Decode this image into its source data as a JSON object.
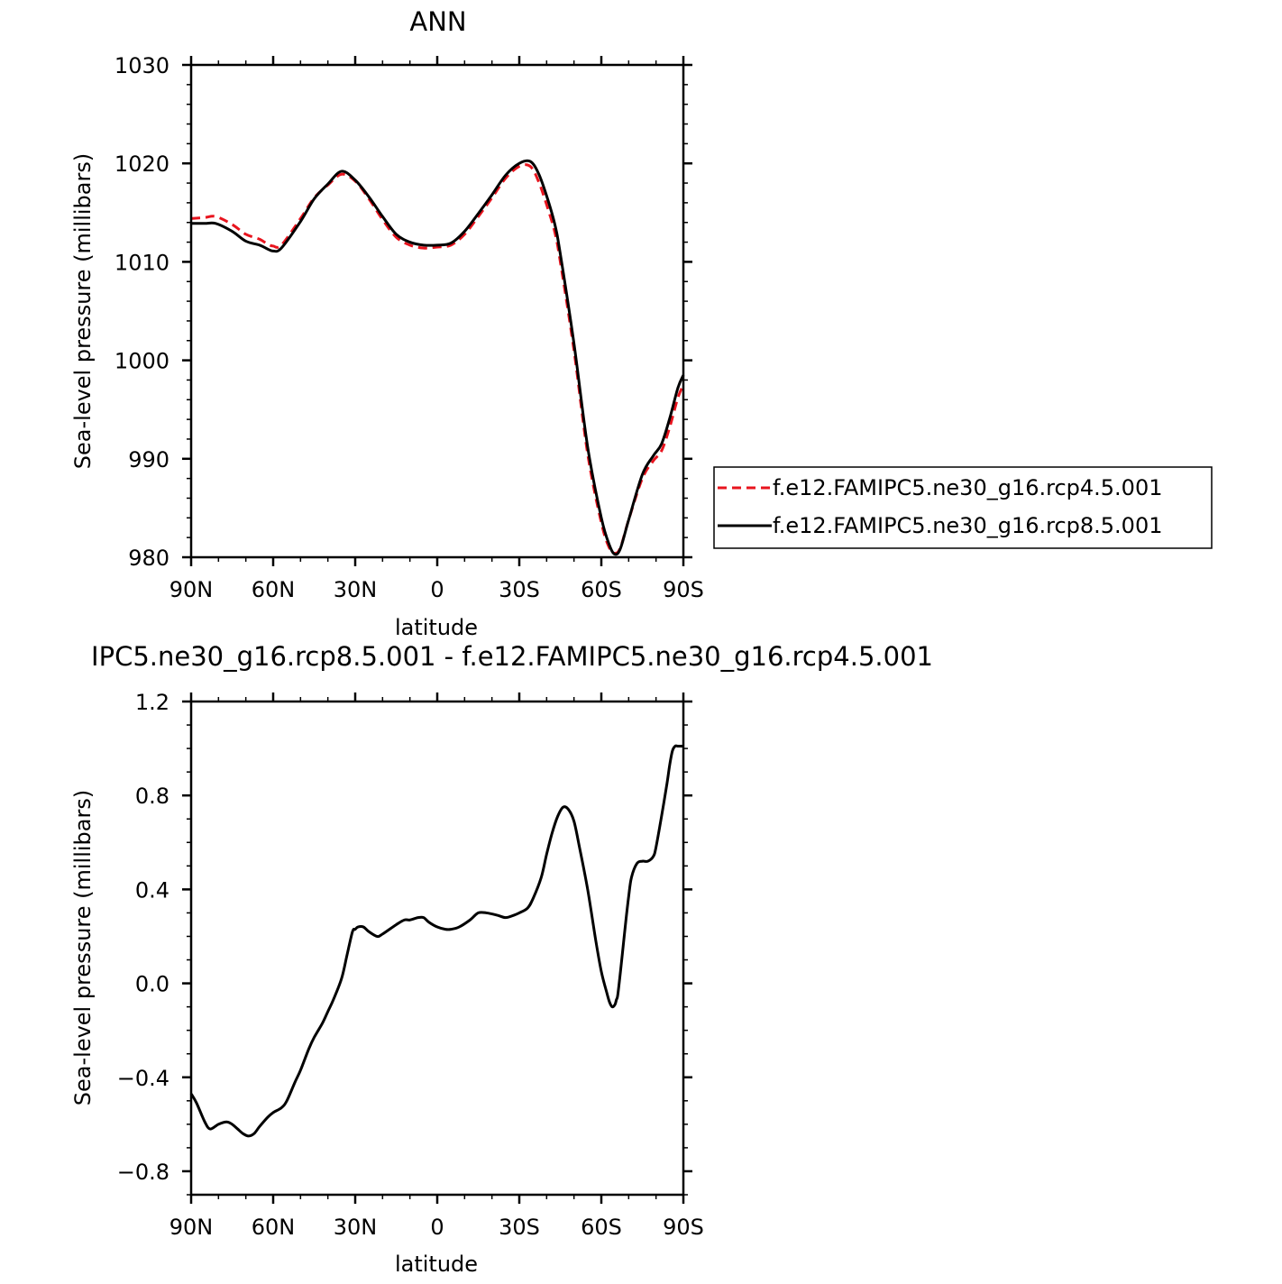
{
  "chart_data": [
    {
      "type": "line",
      "title": "ANN",
      "xlabel": "latitude",
      "ylabel": "Sea-level pressure (millibars)",
      "xlim": [
        90,
        -90
      ],
      "ylim": [
        980,
        1030
      ],
      "x_tick_labels": [
        "90N",
        "60N",
        "30N",
        "0",
        "30S",
        "60S",
        "90S"
      ],
      "x_ticks": [
        90,
        60,
        30,
        0,
        -30,
        -60,
        -90
      ],
      "y_ticks": [
        980,
        990,
        1000,
        1010,
        1020,
        1030
      ],
      "y_tick_labels": [
        "980",
        "990",
        "1000",
        "1010",
        "1020",
        "1030"
      ],
      "legend": {
        "placement": "right"
      },
      "series": [
        {
          "name": "f.e12.FAMIPC5.ne30_g16.rcp4.5.001",
          "color": "#e8141e",
          "style": "dashed",
          "x": [
            90,
            85,
            81,
            75,
            70,
            65,
            62,
            60,
            57,
            50,
            45,
            40,
            35,
            30,
            25,
            20,
            15,
            10,
            5,
            0,
            -5,
            -10,
            -15,
            -20,
            -25,
            -30,
            -34,
            -37,
            -40,
            -43,
            -45,
            -50,
            -55,
            -60,
            -63,
            -65,
            -67,
            -70,
            -75,
            -79,
            -82,
            -85,
            -88,
            -90
          ],
          "values": [
            1014.4,
            1014.5,
            1014.6,
            1013.8,
            1012.8,
            1012.3,
            1011.8,
            1011.6,
            1011.7,
            1014.4,
            1016.5,
            1017.8,
            1018.9,
            1018.2,
            1016.4,
            1014.3,
            1012.5,
            1011.7,
            1011.4,
            1011.5,
            1011.7,
            1012.8,
            1014.6,
            1016.5,
            1018.5,
            1019.7,
            1019.7,
            1018.2,
            1015.8,
            1013.0,
            1010.0,
            1001.0,
            990.5,
            983.5,
            980.9,
            980.4,
            981.0,
            983.8,
            988.0,
            989.8,
            990.8,
            993.2,
            996.2,
            997.5
          ]
        },
        {
          "name": "f.e12.FAMIPC5.ne30_g16.rcp8.5.001",
          "color": "#000000",
          "style": "solid",
          "x": [
            90,
            85,
            81,
            75,
            70,
            65,
            62,
            60,
            57,
            50,
            45,
            40,
            35,
            30,
            25,
            20,
            15,
            10,
            5,
            0,
            -5,
            -10,
            -15,
            -20,
            -25,
            -30,
            -34,
            -37,
            -40,
            -43,
            -45,
            -50,
            -55,
            -60,
            -63,
            -65,
            -67,
            -70,
            -75,
            -79,
            -82,
            -85,
            -88,
            -90
          ],
          "values": [
            1013.9,
            1013.9,
            1013.9,
            1013.1,
            1012.1,
            1011.7,
            1011.3,
            1011.1,
            1011.4,
            1014.1,
            1016.4,
            1017.9,
            1019.2,
            1018.3,
            1016.6,
            1014.6,
            1012.8,
            1012.0,
            1011.7,
            1011.7,
            1011.9,
            1013.1,
            1014.9,
            1016.8,
            1018.8,
            1020.0,
            1020.2,
            1019.0,
            1016.7,
            1013.8,
            1010.8,
            1001.7,
            991.2,
            984.0,
            981.2,
            980.3,
            980.9,
            983.8,
            988.4,
            990.3,
            991.5,
            994.1,
            997.2,
            998.5
          ]
        }
      ]
    },
    {
      "type": "line",
      "title": "IPC5.ne30_g16.rcp8.5.001 - f.e12.FAMIPC5.ne30_g16.rcp4.5.001",
      "xlabel": "latitude",
      "ylabel": "Sea-level pressure (millibars)",
      "xlim": [
        90,
        -90
      ],
      "ylim": [
        -0.9,
        1.2
      ],
      "x_tick_labels": [
        "90N",
        "60N",
        "30N",
        "0",
        "30S",
        "60S",
        "90S"
      ],
      "x_ticks": [
        90,
        60,
        30,
        0,
        -30,
        -60,
        -90
      ],
      "y_ticks": [
        -0.8,
        -0.4,
        0.0,
        0.4,
        0.8,
        1.2
      ],
      "y_tick_labels": [
        "−0.8",
        "−0.4",
        "0.0",
        "0.4",
        "0.8",
        "1.2"
      ],
      "series": [
        {
          "color": "#000000",
          "style": "solid",
          "x": [
            90,
            88,
            85,
            83,
            80,
            77,
            75,
            73,
            71,
            69,
            67,
            65,
            62,
            60,
            57,
            55,
            52,
            50,
            47,
            45,
            42,
            40,
            38,
            35,
            33,
            31,
            30,
            29,
            27,
            25,
            22,
            20,
            15,
            12,
            10,
            7,
            5,
            3,
            0,
            -3,
            -5,
            -8,
            -12,
            -15,
            -18,
            -22,
            -25,
            -28,
            -30,
            -33,
            -35,
            -38,
            -40,
            -42,
            -44,
            -46,
            -48,
            -50,
            -52,
            -55,
            -58,
            -60,
            -62,
            -63,
            -64,
            -65,
            -65.5,
            -66,
            -67,
            -68,
            -69,
            -70,
            -71,
            -73,
            -75,
            -77,
            -79,
            -80,
            -82,
            -84,
            -85,
            -86,
            -87,
            -88,
            -89,
            -90
          ],
          "values": [
            -0.47,
            -0.51,
            -0.59,
            -0.62,
            -0.6,
            -0.59,
            -0.6,
            -0.62,
            -0.64,
            -0.65,
            -0.64,
            -0.61,
            -0.57,
            -0.55,
            -0.53,
            -0.5,
            -0.42,
            -0.37,
            -0.28,
            -0.23,
            -0.17,
            -0.12,
            -0.07,
            0.02,
            0.12,
            0.22,
            0.23,
            0.24,
            0.24,
            0.22,
            0.2,
            0.21,
            0.25,
            0.27,
            0.27,
            0.28,
            0.28,
            0.26,
            0.24,
            0.23,
            0.23,
            0.24,
            0.27,
            0.3,
            0.3,
            0.29,
            0.28,
            0.29,
            0.3,
            0.32,
            0.36,
            0.45,
            0.55,
            0.64,
            0.71,
            0.75,
            0.74,
            0.69,
            0.58,
            0.4,
            0.18,
            0.05,
            -0.04,
            -0.08,
            -0.1,
            -0.09,
            -0.07,
            -0.05,
            0.05,
            0.16,
            0.27,
            0.37,
            0.45,
            0.51,
            0.52,
            0.52,
            0.54,
            0.58,
            0.71,
            0.85,
            0.93,
            0.99,
            1.01,
            1.01,
            1.01,
            1.01
          ]
        }
      ]
    }
  ]
}
